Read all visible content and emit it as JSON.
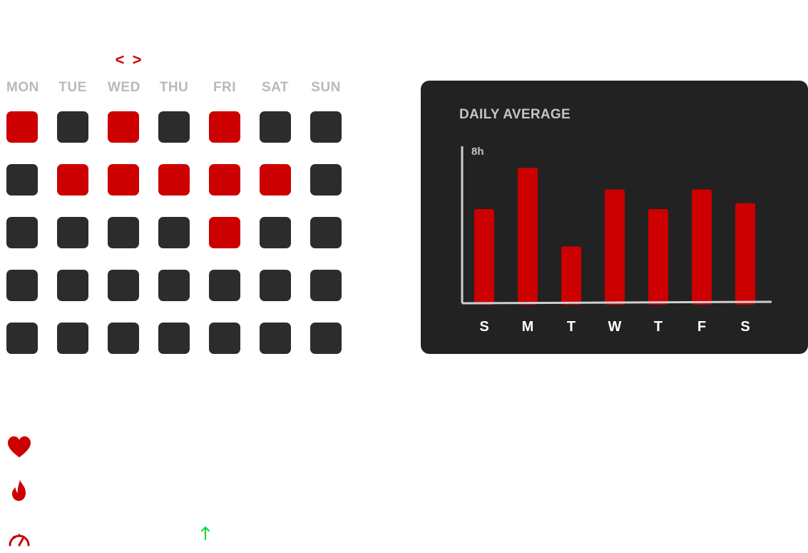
{
  "nav": {
    "prev_label": "<",
    "next_label": ">"
  },
  "calendar": {
    "days": [
      "MON",
      "TUE",
      "WED",
      "THU",
      "FRI",
      "SAT",
      "SUN"
    ],
    "weeks": [
      [
        true,
        false,
        true,
        false,
        true,
        false,
        false
      ],
      [
        false,
        true,
        true,
        true,
        true,
        true,
        false
      ],
      [
        false,
        false,
        false,
        false,
        true,
        false,
        false
      ],
      [
        false,
        false,
        false,
        false,
        false,
        false,
        false
      ],
      [
        false,
        false,
        false,
        false,
        false,
        false,
        false
      ]
    ],
    "active_color": "#cc0000",
    "inactive_color": "#2c2c2c"
  },
  "chart_data": {
    "type": "bar",
    "title": "DAILY AVERAGE",
    "y_max_label": "8h",
    "ylim": [
      0,
      8
    ],
    "categories": [
      "S",
      "M",
      "T",
      "W",
      "T",
      "F",
      "S"
    ],
    "values": [
      4.8,
      6.9,
      2.9,
      5.8,
      4.8,
      5.8,
      5.1
    ],
    "bar_color": "#cc0000",
    "grid": false
  },
  "icons": {
    "left": [
      "heart-icon",
      "flame-icon",
      "gauge-icon"
    ],
    "trend": "up-arrow-icon",
    "accent_color": "#cc0000",
    "trend_color": "#00dd22"
  }
}
